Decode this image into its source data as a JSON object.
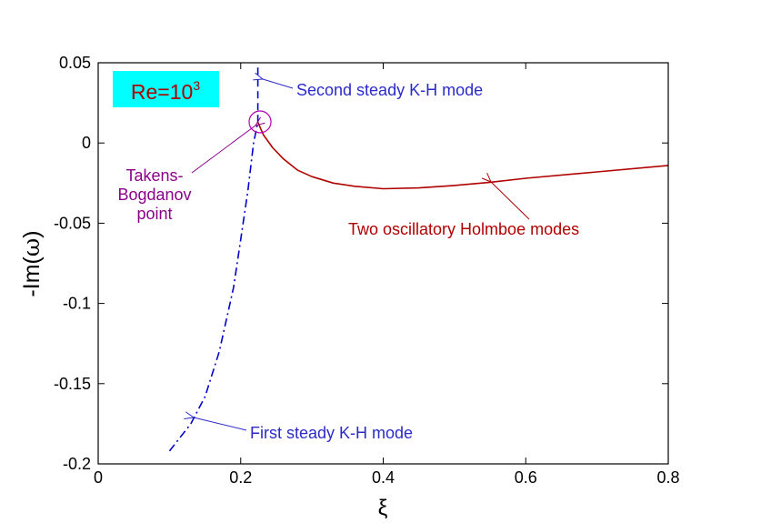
{
  "chart_data": {
    "type": "line",
    "xlabel": "ξ",
    "ylabel_prefix": "-Im(",
    "ylabel_symbol": "ω",
    "ylabel_suffix": ")",
    "xlim": [
      0,
      0.8
    ],
    "ylim": [
      -0.2,
      0.05
    ],
    "xticks": [
      0,
      0.2,
      0.4,
      0.6,
      0.8
    ],
    "xtick_labels": [
      "0",
      "0.2",
      "0.4",
      "0.6",
      "0.8"
    ],
    "yticks": [
      0.05,
      0,
      -0.05,
      -0.1,
      -0.15,
      -0.2
    ],
    "ytick_labels": [
      "0.05",
      "0",
      "-0.05",
      "-0.1",
      "-0.15",
      "-0.2"
    ],
    "grid": false,
    "legend": {
      "text_base": "Re=10",
      "text_sup": "3",
      "background": "#00ffff",
      "color": "#b00000"
    },
    "series": [
      {
        "color": "#0000cc",
        "style": "dashdot",
        "points": [
          [
            0.1,
            -0.192
          ],
          [
            0.13,
            -0.175
          ],
          [
            0.15,
            -0.158
          ],
          [
            0.17,
            -0.13
          ],
          [
            0.19,
            -0.09
          ],
          [
            0.2,
            -0.06
          ],
          [
            0.21,
            -0.03
          ],
          [
            0.218,
            0.0
          ],
          [
            0.224,
            0.013
          ]
        ]
      },
      {
        "color": "#0000cc",
        "style": "dashed",
        "points": [
          [
            0.224,
            0.013
          ],
          [
            0.224,
            0.05
          ]
        ]
      },
      {
        "color": "#b00000",
        "style": "solid",
        "points": [
          [
            0.224,
            0.013
          ],
          [
            0.232,
            0.005
          ],
          [
            0.245,
            -0.003
          ],
          [
            0.26,
            -0.01
          ],
          [
            0.28,
            -0.017
          ],
          [
            0.3,
            -0.021
          ],
          [
            0.33,
            -0.025
          ],
          [
            0.36,
            -0.027
          ],
          [
            0.4,
            -0.0285
          ],
          [
            0.45,
            -0.028
          ],
          [
            0.5,
            -0.0265
          ],
          [
            0.55,
            -0.0245
          ],
          [
            0.6,
            -0.022
          ],
          [
            0.7,
            -0.018
          ],
          [
            0.8,
            -0.014
          ]
        ]
      }
    ],
    "annotations": [
      {
        "id": "second-kh",
        "lines": [
          "Second steady K-H mode"
        ],
        "color": "#2b2bc8",
        "anchor_x": 0.224,
        "anchor_y": 0.042
      },
      {
        "id": "takens-bogdanov",
        "lines": [
          "Takens-",
          "Bogdanov",
          "point"
        ],
        "color": "#8b008b",
        "anchor_x": 0.224,
        "anchor_y": 0.013
      },
      {
        "id": "holmboe",
        "lines": [
          "Two oscillatory Holmboe modes"
        ],
        "color": "#b00000",
        "anchor_x": 0.55,
        "anchor_y": -0.025
      },
      {
        "id": "first-kh",
        "lines": [
          "First steady K-H mode"
        ],
        "color": "#2b2bc8",
        "anchor_x": 0.13,
        "anchor_y": -0.172
      }
    ]
  }
}
